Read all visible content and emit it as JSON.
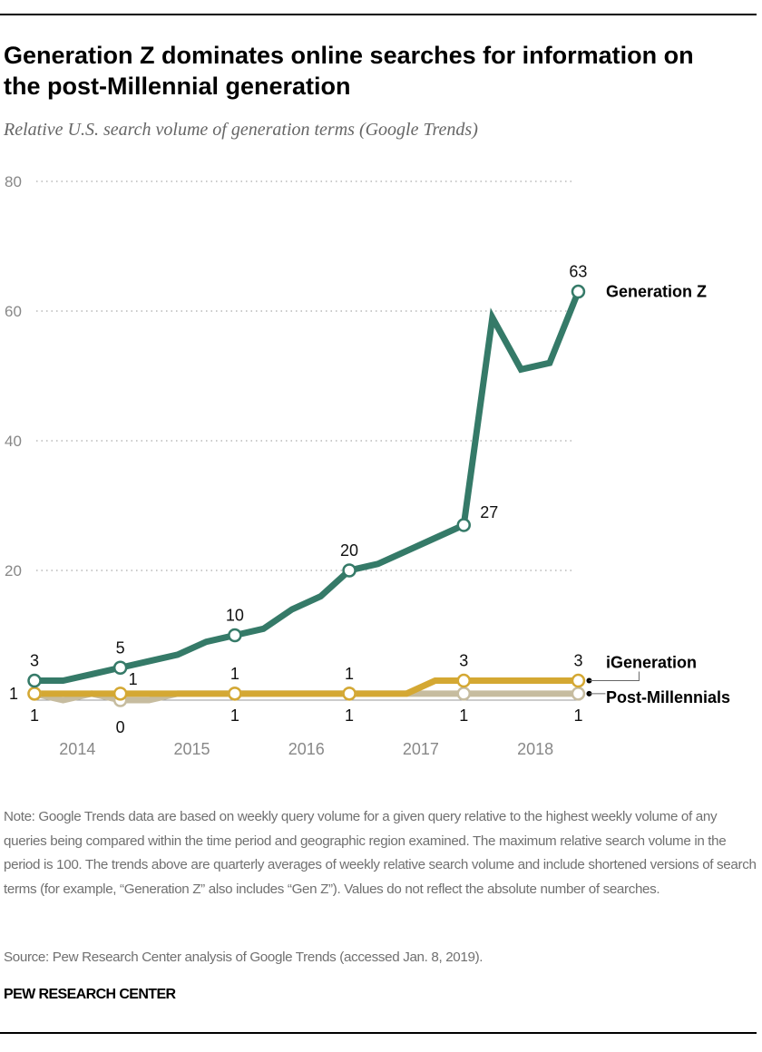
{
  "header": {
    "title": "Generation Z dominates online searches for information on the post-Millennial generation",
    "subtitle": "Relative U.S. search volume of generation terms (Google Trends)"
  },
  "chart_data": {
    "type": "line",
    "title": "Generation Z dominates online searches for information on the post-Millennial generation",
    "subtitle": "Relative U.S. search volume of generation terms (Google Trends)",
    "x": [
      "2014 Q1",
      "2014 Q2",
      "2014 Q3",
      "2014 Q4",
      "2015 Q1",
      "2015 Q2",
      "2015 Q3",
      "2015 Q4",
      "2016 Q1",
      "2016 Q2",
      "2016 Q3",
      "2016 Q4",
      "2017 Q1",
      "2017 Q2",
      "2017 Q3",
      "2017 Q4",
      "2018 Q1",
      "2018 Q2",
      "2018 Q3",
      "2018 Q4"
    ],
    "x_tick_labels": [
      "2014",
      "2015",
      "2016",
      "2017",
      "2018"
    ],
    "ylim": [
      0,
      80
    ],
    "y_ticks": [
      20,
      40,
      60,
      80
    ],
    "grid": "horizontal dotted",
    "legend": "direct labels at right end of lines",
    "series": [
      {
        "name": "Generation Z",
        "color": "#357a68",
        "values": [
          3,
          3,
          4,
          5,
          6,
          7,
          9,
          10,
          11,
          14,
          16,
          20,
          21,
          23,
          25,
          27,
          59,
          51,
          52,
          63
        ],
        "labeled_points": [
          0,
          3,
          7,
          11,
          15,
          19
        ]
      },
      {
        "name": "iGeneration",
        "color": "#d4a833",
        "values": [
          1,
          1,
          1,
          1,
          1,
          1,
          1,
          1,
          1,
          1,
          1,
          1,
          1,
          1,
          3,
          3,
          3,
          3,
          3,
          3
        ],
        "labeled_points": [
          0,
          3,
          7,
          11,
          15,
          19
        ]
      },
      {
        "name": "Post-Millennials",
        "color": "#c6bc9f",
        "values": [
          1,
          0,
          1,
          0,
          0,
          1,
          1,
          1,
          1,
          1,
          1,
          1,
          1,
          1,
          1,
          1,
          1,
          1,
          1,
          1
        ],
        "labeled_points": [
          0,
          3,
          7,
          11,
          15,
          19
        ]
      }
    ]
  },
  "footer": {
    "note": "Note: Google Trends data are based on weekly query volume for a given query relative to the highest weekly volume of any queries being compared within the time period and geographic region examined. The maximum relative search volume in the period is 100. The trends above are quarterly averages of weekly relative search volume and include shortened versions of search terms (for example, “Generation Z” also includes “Gen Z”). Values do not reflect the absolute number of searches.",
    "source": "Source: Pew Research Center analysis of Google Trends (accessed Jan. 8, 2019).",
    "brand": "PEW RESEARCH CENTER"
  }
}
